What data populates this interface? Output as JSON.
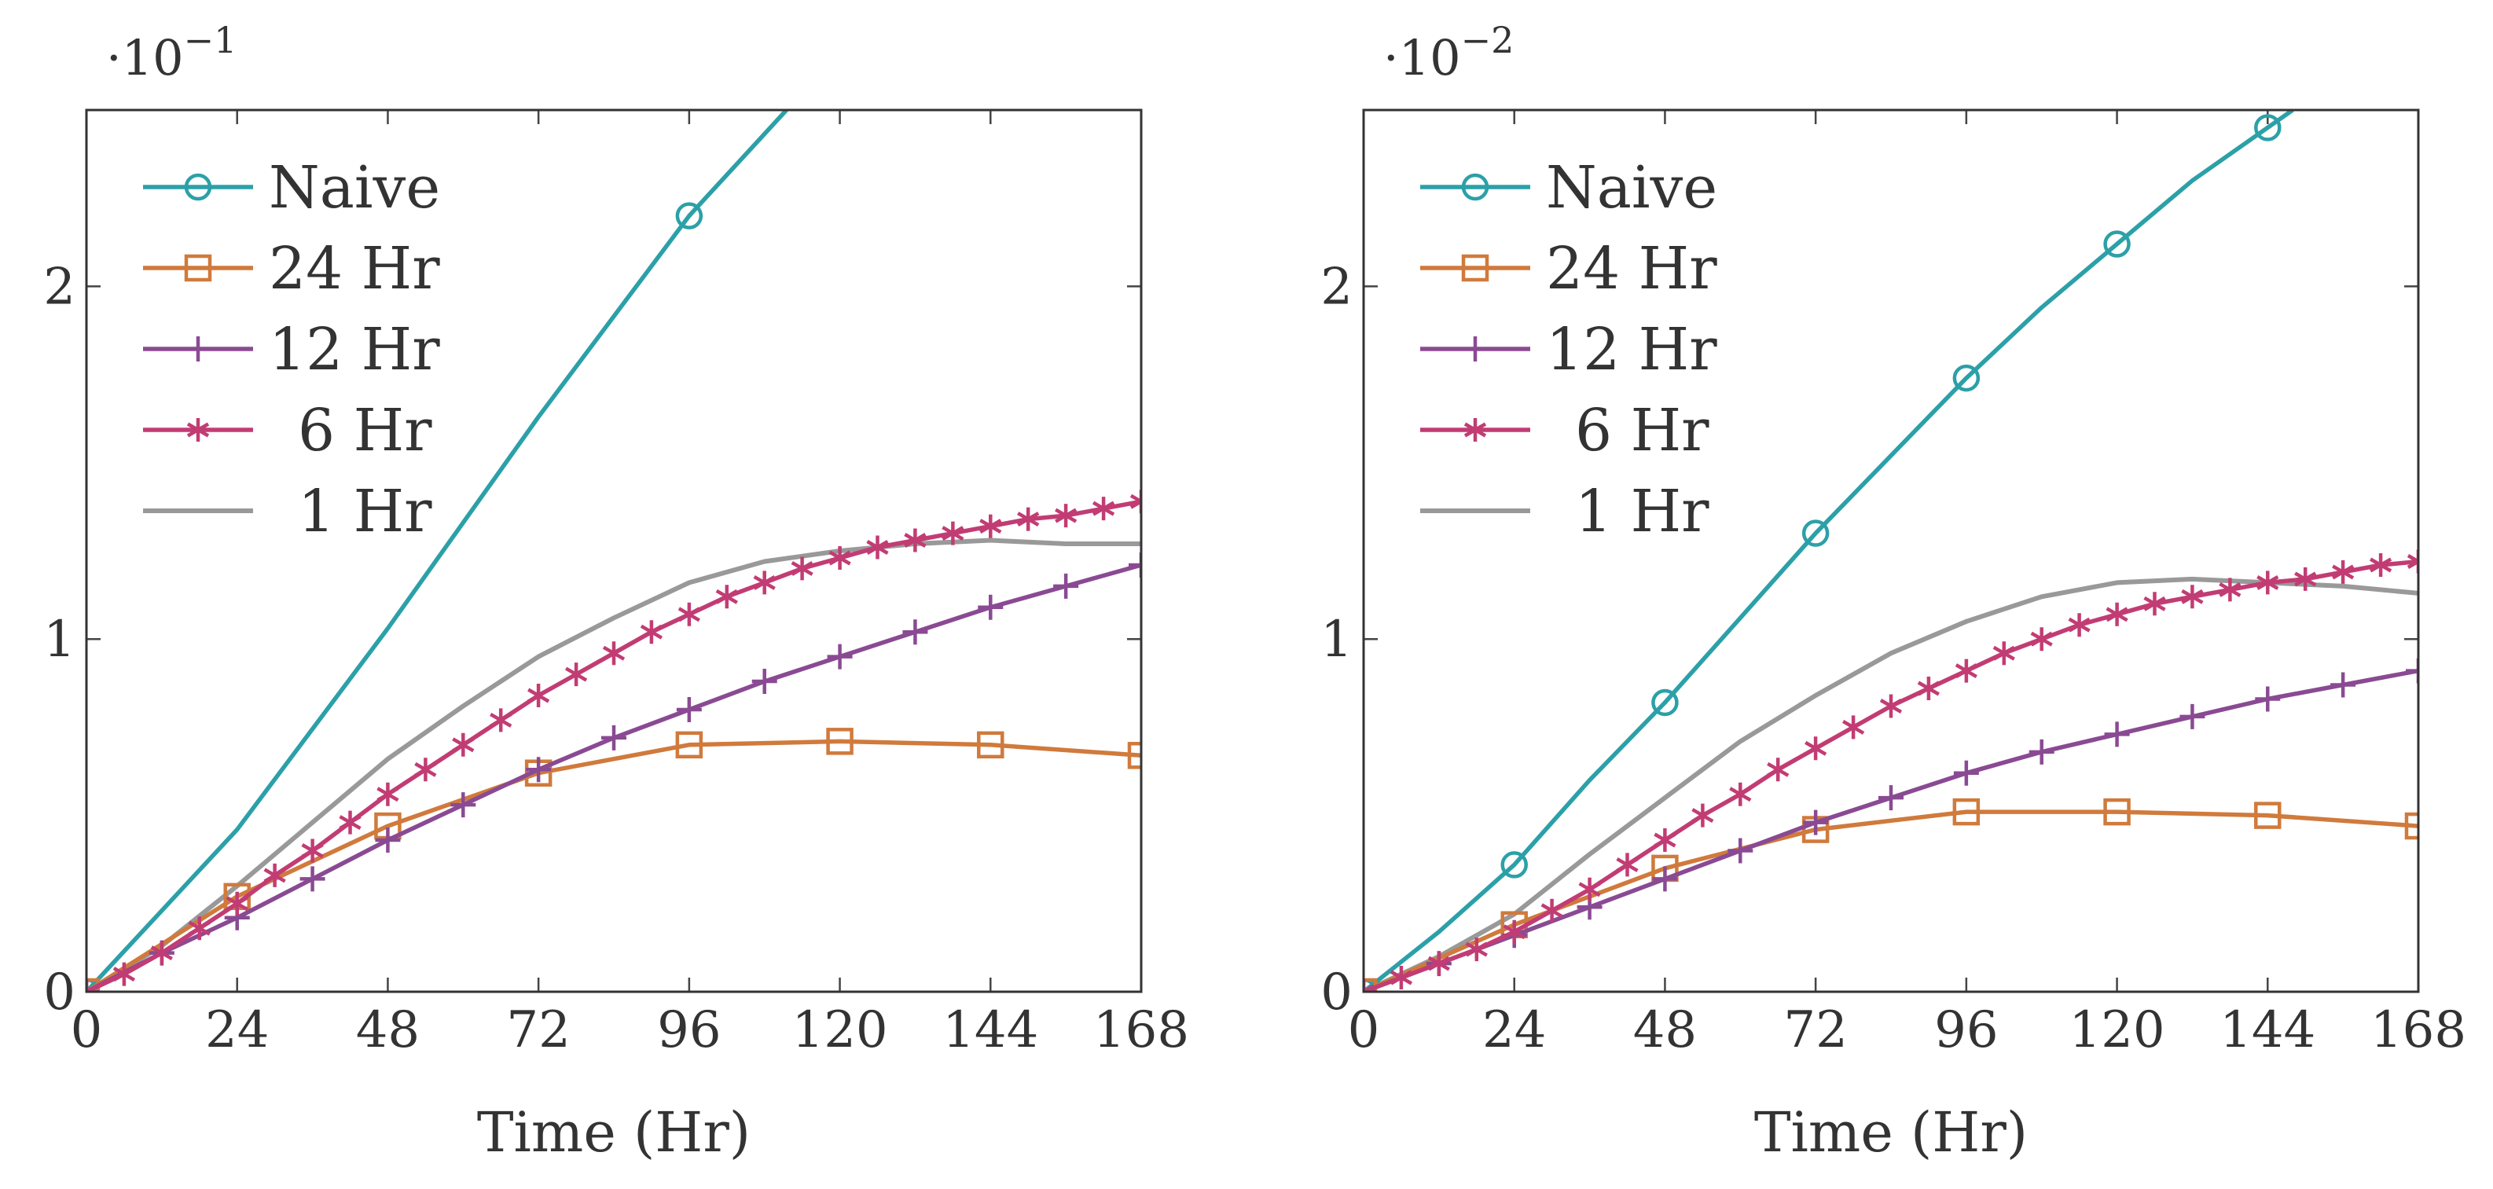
{
  "chart_data": [
    {
      "type": "line",
      "scale_label": "·10",
      "scale_exponent": "−1",
      "xlabel": "Time (Hr)",
      "ylabel": "",
      "xlim": [
        0,
        168
      ],
      "ylim": [
        0,
        2.5
      ],
      "xticks": [
        "0",
        "24",
        "48",
        "72",
        "96",
        "120",
        "144",
        "168"
      ],
      "yticks": [
        "0",
        "1",
        "2"
      ],
      "legend_position": "top-left",
      "series": [
        {
          "name": "Naive",
          "marker": "circle",
          "color": "#2ca0a8",
          "marker_every": 4,
          "x": [
            0,
            24,
            48,
            72,
            96,
            111.5
          ],
          "y": [
            0,
            0.46,
            1.03,
            1.63,
            2.2,
            2.5
          ]
        },
        {
          "name": "24 Hr",
          "marker": "square",
          "color": "#d07a3c",
          "marker_every": 1,
          "x": [
            0,
            24,
            48,
            72,
            96,
            120,
            144,
            168
          ],
          "y": [
            0,
            0.27,
            0.47,
            0.62,
            0.7,
            0.71,
            0.7,
            0.67
          ]
        },
        {
          "name": "12 Hr",
          "marker": "plus",
          "color": "#8a4a93",
          "marker_every": 1,
          "x": [
            0,
            12,
            24,
            36,
            48,
            60,
            72,
            84,
            96,
            108,
            120,
            132,
            144,
            156,
            168
          ],
          "y": [
            0,
            0.11,
            0.21,
            0.32,
            0.43,
            0.53,
            0.63,
            0.72,
            0.8,
            0.88,
            0.95,
            1.02,
            1.09,
            1.15,
            1.21
          ]
        },
        {
          "name": "6 Hr",
          "marker": "star",
          "color": "#c23c74",
          "marker_every": 1,
          "x": [
            0,
            6,
            12,
            18,
            24,
            30,
            36,
            42,
            48,
            54,
            60,
            66,
            72,
            78,
            84,
            90,
            96,
            102,
            108,
            114,
            120,
            126,
            132,
            138,
            144,
            150,
            156,
            162,
            168
          ],
          "y": [
            0,
            0.05,
            0.11,
            0.18,
            0.25,
            0.33,
            0.4,
            0.48,
            0.56,
            0.63,
            0.7,
            0.77,
            0.84,
            0.9,
            0.96,
            1.02,
            1.07,
            1.12,
            1.16,
            1.2,
            1.23,
            1.26,
            1.28,
            1.3,
            1.32,
            1.34,
            1.35,
            1.37,
            1.39
          ]
        },
        {
          "name": "1 Hr",
          "marker": "none",
          "color": "#999999",
          "marker_every": 1,
          "x": [
            0,
            12,
            24,
            36,
            48,
            60,
            72,
            84,
            96,
            108,
            120,
            132,
            144,
            156,
            168
          ],
          "y": [
            0,
            0.13,
            0.3,
            0.48,
            0.66,
            0.81,
            0.95,
            1.06,
            1.16,
            1.22,
            1.25,
            1.27,
            1.28,
            1.27,
            1.27
          ]
        }
      ]
    },
    {
      "type": "line",
      "scale_label": "·10",
      "scale_exponent": "−2",
      "xlabel": "Time (Hr)",
      "ylabel": "",
      "xlim": [
        0,
        168
      ],
      "ylim": [
        0,
        2.5
      ],
      "xticks": [
        "0",
        "24",
        "48",
        "72",
        "96",
        "120",
        "144",
        "168"
      ],
      "yticks": [
        "0",
        "1",
        "2"
      ],
      "legend_position": "top-left",
      "series": [
        {
          "name": "Naive",
          "marker": "circle",
          "color": "#2ca0a8",
          "marker_every": 2,
          "x": [
            0,
            12,
            24,
            36,
            48,
            60,
            72,
            84,
            96,
            108,
            120,
            132,
            144,
            148
          ],
          "y": [
            0,
            0.17,
            0.36,
            0.6,
            0.82,
            1.06,
            1.3,
            1.52,
            1.74,
            1.94,
            2.12,
            2.3,
            2.45,
            2.5
          ]
        },
        {
          "name": "24 Hr",
          "marker": "square",
          "color": "#d07a3c",
          "marker_every": 1,
          "x": [
            0,
            24,
            48,
            72,
            96,
            120,
            144,
            168
          ],
          "y": [
            0,
            0.19,
            0.35,
            0.46,
            0.51,
            0.51,
            0.5,
            0.47
          ]
        },
        {
          "name": "12 Hr",
          "marker": "plus",
          "color": "#8a4a93",
          "marker_every": 1,
          "x": [
            0,
            12,
            24,
            36,
            48,
            60,
            72,
            84,
            96,
            108,
            120,
            132,
            144,
            156,
            168
          ],
          "y": [
            0,
            0.08,
            0.16,
            0.24,
            0.32,
            0.4,
            0.48,
            0.55,
            0.62,
            0.68,
            0.73,
            0.78,
            0.83,
            0.87,
            0.91
          ]
        },
        {
          "name": "6 Hr",
          "marker": "star",
          "color": "#c23c74",
          "marker_every": 1,
          "x": [
            0,
            6,
            12,
            18,
            24,
            30,
            36,
            42,
            48,
            54,
            60,
            66,
            72,
            78,
            84,
            90,
            96,
            102,
            108,
            114,
            120,
            126,
            132,
            138,
            144,
            150,
            156,
            162,
            168
          ],
          "y": [
            0,
            0.04,
            0.08,
            0.12,
            0.17,
            0.23,
            0.29,
            0.36,
            0.43,
            0.5,
            0.56,
            0.63,
            0.69,
            0.75,
            0.81,
            0.86,
            0.91,
            0.96,
            1.0,
            1.04,
            1.07,
            1.1,
            1.12,
            1.14,
            1.16,
            1.17,
            1.19,
            1.21,
            1.22
          ]
        },
        {
          "name": "1 Hr",
          "marker": "none",
          "color": "#999999",
          "marker_every": 1,
          "x": [
            0,
            12,
            24,
            36,
            48,
            60,
            72,
            84,
            96,
            108,
            120,
            132,
            144,
            156,
            168
          ],
          "y": [
            0,
            0.1,
            0.22,
            0.39,
            0.55,
            0.71,
            0.84,
            0.96,
            1.05,
            1.12,
            1.16,
            1.17,
            1.16,
            1.15,
            1.13
          ]
        }
      ]
    }
  ]
}
